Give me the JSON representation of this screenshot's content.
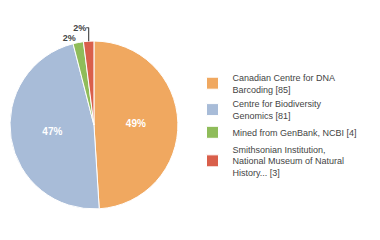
{
  "chart_data": {
    "type": "pie",
    "categories": [
      "Canadian Centre for DNA\nBarcoding [85]",
      "Centre for Biodiversity\nGenomics [81]",
      "Mined from GenBank, NCBI [4]",
      "Smithsonian Institution,\nNational Museum of Natural\nHistory... [3]"
    ],
    "values": [
      49,
      47,
      2,
      2
    ],
    "value_labels": [
      "49%",
      "47%",
      "2%",
      "2%"
    ],
    "colors": [
      "#f0a860",
      "#a8bcd8",
      "#8fbc5a",
      "#d95f4b"
    ],
    "data_labels": true,
    "legend": "right"
  }
}
